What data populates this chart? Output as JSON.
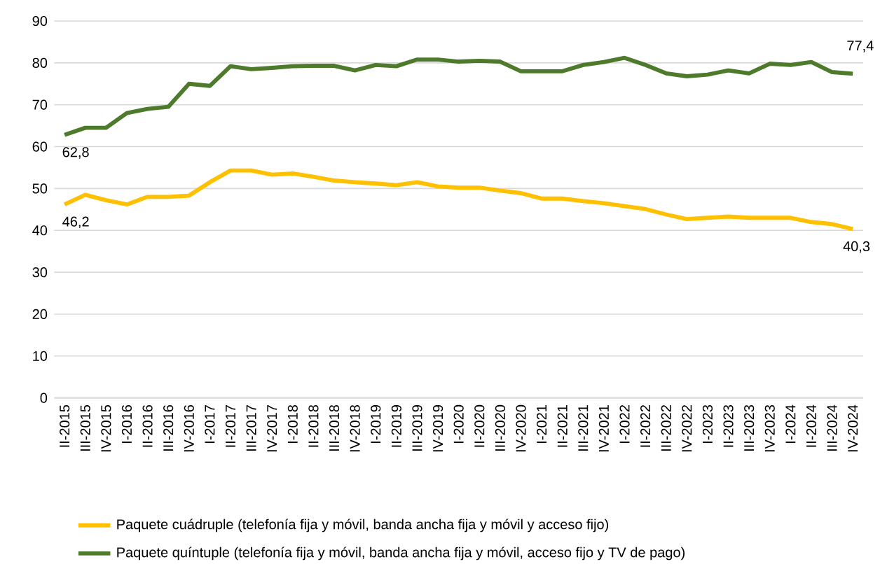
{
  "chart_data": {
    "type": "line",
    "categories": [
      "II-2015",
      "III-2015",
      "IV-2015",
      "I-2016",
      "II-2016",
      "III-2016",
      "IV-2016",
      "I-2017",
      "II-2017",
      "III-2017",
      "IV-2017",
      "I-2018",
      "II-2018",
      "III-2018",
      "IV-2018",
      "I-2019",
      "II-2019",
      "III-2019",
      "IV-2019",
      "I-2020",
      "II-2020",
      "III-2020",
      "IV-2020",
      "I-2021",
      "II-2021",
      "III-2021",
      "IV-2021",
      "I-2022",
      "II-2022",
      "III-2022",
      "IV-2022",
      "I-2023",
      "II-2023",
      "III-2023",
      "IV-2023",
      "I-2024",
      "II-2024",
      "III-2024",
      "IV-2024"
    ],
    "series": [
      {
        "name": "Paquete cuádruple (telefonía fija y móvil, banda ancha fija y móvil y acceso fijo)",
        "color": "#ffc000",
        "values": [
          46.2,
          48.5,
          47.2,
          46.2,
          48,
          48,
          48.3,
          51.5,
          54.3,
          54.3,
          53.3,
          53.6,
          52.8,
          51.9,
          51.5,
          51.2,
          50.8,
          51.5,
          50.5,
          50.2,
          50.2,
          49.5,
          48.9,
          47.6,
          47.6,
          47,
          46.5,
          45.8,
          45.1,
          43.8,
          42.7,
          43,
          43.3,
          43,
          43,
          43,
          42,
          41.5,
          40.3
        ],
        "value_labels": [
          "46,2",
          null,
          null,
          null,
          null,
          null,
          null,
          null,
          null,
          null,
          null,
          null,
          null,
          null,
          null,
          null,
          null,
          null,
          null,
          null,
          null,
          null,
          null,
          null,
          null,
          null,
          null,
          null,
          null,
          null,
          null,
          null,
          null,
          null,
          null,
          null,
          null,
          null,
          "40,3"
        ]
      },
      {
        "name": "Paquete quíntuple (telefonía fija y móvil, banda ancha fija y móvil, acceso fijo y TV de pago)",
        "color": "#4e7a2b",
        "values": [
          62.8,
          64.5,
          64.5,
          68,
          69,
          69.5,
          75,
          74.5,
          79.2,
          78.5,
          78.8,
          79.2,
          79.3,
          79.3,
          78.2,
          79.5,
          79.2,
          80.8,
          80.8,
          80.3,
          80.5,
          80.3,
          78,
          78,
          78,
          79.5,
          80.2,
          81.2,
          79.5,
          77.5,
          76.8,
          77.2,
          78.2,
          77.5,
          79.8,
          79.5,
          80.2,
          77.8,
          77.4
        ],
        "value_labels": [
          "62,8",
          null,
          null,
          null,
          null,
          null,
          null,
          null,
          null,
          null,
          null,
          null,
          null,
          null,
          null,
          null,
          null,
          null,
          null,
          null,
          null,
          null,
          null,
          null,
          null,
          null,
          null,
          null,
          null,
          null,
          null,
          null,
          null,
          null,
          null,
          null,
          null,
          null,
          "77,4"
        ]
      }
    ],
    "ylim": [
      0,
      90
    ],
    "yticks": [
      0,
      10,
      20,
      30,
      40,
      50,
      60,
      70,
      80,
      90
    ],
    "grid": "y",
    "legend": "bottom",
    "marker": "none",
    "line_style": "solid"
  }
}
